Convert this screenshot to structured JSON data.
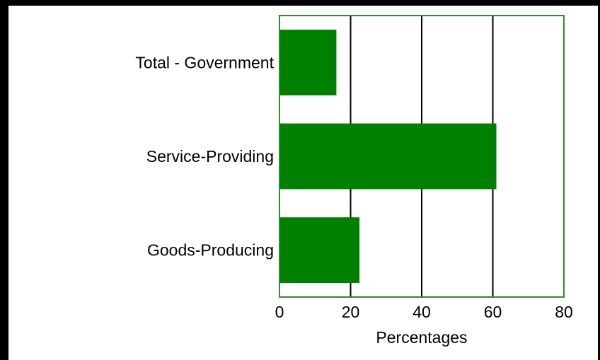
{
  "chart_data": {
    "type": "bar",
    "orientation": "horizontal",
    "categories": [
      "Total - Government",
      "Service-Providing",
      "Goods-Producing"
    ],
    "values": [
      16,
      61,
      22.5
    ],
    "xlabel": "Percentages",
    "xlim": [
      0,
      80
    ],
    "xticks": [
      "0",
      "20",
      "40",
      "60",
      "80"
    ],
    "grid": "vertical",
    "bar_color": "#008000",
    "plot_border_color": "#2e8b2e",
    "grid_color": "#000000"
  }
}
